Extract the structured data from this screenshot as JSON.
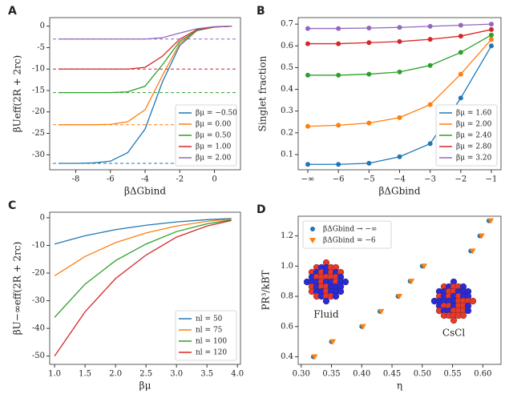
{
  "chart_data": [
    {
      "type": "line",
      "panel": "A",
      "xlabel": "βΔGbind",
      "ylabel": "βUeff(2R + 2rc)",
      "x": [
        -9,
        -8,
        -7,
        -6,
        -5,
        -4,
        -3,
        -2,
        -1,
        0,
        1
      ],
      "xlim": [
        -9.5,
        1.5
      ],
      "xticks": [
        -8,
        -6,
        -4,
        -2,
        0
      ],
      "ylim": [
        -33.5,
        2
      ],
      "yticks": [
        0,
        -5,
        -10,
        -15,
        -20,
        -25,
        -30
      ],
      "legend": "lower right",
      "series": [
        {
          "name": "βμ = −0.50",
          "color": "#1f77b4",
          "asymptote": -32,
          "values": [
            -32,
            -32,
            -31.9,
            -31.5,
            -29.5,
            -24,
            -13,
            -4.5,
            -1,
            -0.2,
            0
          ]
        },
        {
          "name": "βμ = 0.00",
          "color": "#ff7f0e",
          "asymptote": -23,
          "values": [
            -23,
            -23,
            -23,
            -22.9,
            -22.3,
            -19.5,
            -11.5,
            -4,
            -1,
            -0.2,
            0
          ]
        },
        {
          "name": "βμ = 0.50",
          "color": "#2ca02c",
          "asymptote": -15.5,
          "values": [
            -15.5,
            -15.5,
            -15.5,
            -15.5,
            -15.3,
            -14,
            -9,
            -3.5,
            -1,
            -0.2,
            0
          ]
        },
        {
          "name": "βμ = 1.00",
          "color": "#d62728",
          "asymptote": -10,
          "values": [
            -10,
            -10,
            -10,
            -10,
            -10,
            -9.6,
            -7,
            -3,
            -0.8,
            -0.2,
            0
          ]
        },
        {
          "name": "βμ = 2.00",
          "color": "#9467bd",
          "asymptote": -3,
          "values": [
            -3,
            -3,
            -3,
            -3,
            -3,
            -3,
            -2.7,
            -1.6,
            -0.6,
            -0.1,
            0
          ]
        }
      ]
    },
    {
      "type": "line",
      "panel": "B",
      "xlabel": "βΔGbind",
      "ylabel": "Singlet fraction",
      "markers": true,
      "categories": [
        "−∞",
        "−6",
        "−5",
        "−4",
        "−3",
        "−2",
        "−1"
      ],
      "ylim": [
        0.03,
        0.73
      ],
      "yticks": [
        0.1,
        0.2,
        0.3,
        0.4,
        0.5,
        0.6,
        0.7
      ],
      "legend": "lower right",
      "series": [
        {
          "name": "βμ = 1.60",
          "color": "#1f77b4",
          "values": [
            0.055,
            0.055,
            0.06,
            0.09,
            0.15,
            0.36,
            0.6
          ]
        },
        {
          "name": "βμ = 2.00",
          "color": "#ff7f0e",
          "values": [
            0.23,
            0.235,
            0.245,
            0.27,
            0.33,
            0.47,
            0.63
          ]
        },
        {
          "name": "βμ = 2.40",
          "color": "#2ca02c",
          "values": [
            0.465,
            0.465,
            0.47,
            0.48,
            0.51,
            0.57,
            0.65
          ]
        },
        {
          "name": "βμ = 2.80",
          "color": "#d62728",
          "values": [
            0.61,
            0.61,
            0.615,
            0.62,
            0.63,
            0.645,
            0.675
          ]
        },
        {
          "name": "βμ = 3.20",
          "color": "#9467bd",
          "values": [
            0.68,
            0.68,
            0.682,
            0.685,
            0.69,
            0.695,
            0.7
          ]
        }
      ]
    },
    {
      "type": "line",
      "panel": "C",
      "xlabel": "βμ",
      "ylabel": "βU−∞eff(2R + 2rc)",
      "x": [
        1.0,
        1.5,
        2.0,
        2.5,
        3.0,
        3.5,
        3.9
      ],
      "xlim": [
        0.92,
        4.05
      ],
      "xticks": [
        {
          "value": 1,
          "label": "1.0"
        },
        1.5,
        {
          "value": 2,
          "label": "2.0"
        },
        2.5,
        {
          "value": 3,
          "label": "3.0"
        },
        3.5,
        {
          "value": 4,
          "label": "4.0"
        }
      ],
      "ylim": [
        -53,
        2
      ],
      "yticks": [
        0,
        -10,
        -20,
        -30,
        -40,
        -50
      ],
      "legend": "lower right",
      "series": [
        {
          "name": "nl = 50",
          "color": "#1f77b4",
          "values": [
            -9.5,
            -6.5,
            -4.3,
            -2.7,
            -1.5,
            -0.7,
            -0.3
          ]
        },
        {
          "name": "nl = 75",
          "color": "#ff7f0e",
          "values": [
            -21,
            -14,
            -9,
            -5.5,
            -3,
            -1.3,
            -0.5
          ]
        },
        {
          "name": "nl = 100",
          "color": "#2ca02c",
          "values": [
            -36,
            -24,
            -15.5,
            -9.5,
            -5,
            -2.2,
            -0.8
          ]
        },
        {
          "name": "nl = 120",
          "color": "#d62728",
          "values": [
            -50,
            -34,
            -22,
            -13.5,
            -7,
            -3,
            -1
          ]
        }
      ]
    },
    {
      "type": "scatter",
      "panel": "D",
      "xlabel": "η",
      "ylabel": "PR³/kBT",
      "annotations": [
        "Fluid",
        "CsCl"
      ],
      "xlim": [
        0.295,
        0.63
      ],
      "xticks": [
        {
          "value": 0.3,
          "label": "0.30"
        },
        0.35,
        {
          "value": 0.4,
          "label": "0.40"
        },
        0.45,
        {
          "value": 0.5,
          "label": "0.50"
        },
        0.55,
        {
          "value": 0.6,
          "label": "0.60"
        }
      ],
      "ylim": [
        0.35,
        1.33
      ],
      "yticks": [
        0.4,
        0.6,
        0.8,
        {
          "value": 1,
          "label": "1.0"
        },
        1.2
      ],
      "legend": "upper left",
      "series": [
        {
          "name": "βΔGbind → −∞",
          "color": "#1f77b4",
          "marker": "circle",
          "x": [
            0.32,
            0.35,
            0.4,
            0.43,
            0.46,
            0.48,
            0.5,
            0.58,
            0.595,
            0.61
          ],
          "values": [
            0.4,
            0.5,
            0.6,
            0.7,
            0.8,
            0.9,
            1.0,
            1.1,
            1.2,
            1.3
          ]
        },
        {
          "name": "βΔGbind = −6",
          "color": "#ff7f0e",
          "marker": "triangle",
          "x": [
            0.322,
            0.352,
            0.402,
            0.432,
            0.462,
            0.482,
            0.503,
            0.583,
            0.598,
            0.613
          ],
          "values": [
            0.4,
            0.5,
            0.6,
            0.7,
            0.8,
            0.9,
            1.0,
            1.1,
            1.2,
            1.3
          ]
        }
      ]
    }
  ]
}
